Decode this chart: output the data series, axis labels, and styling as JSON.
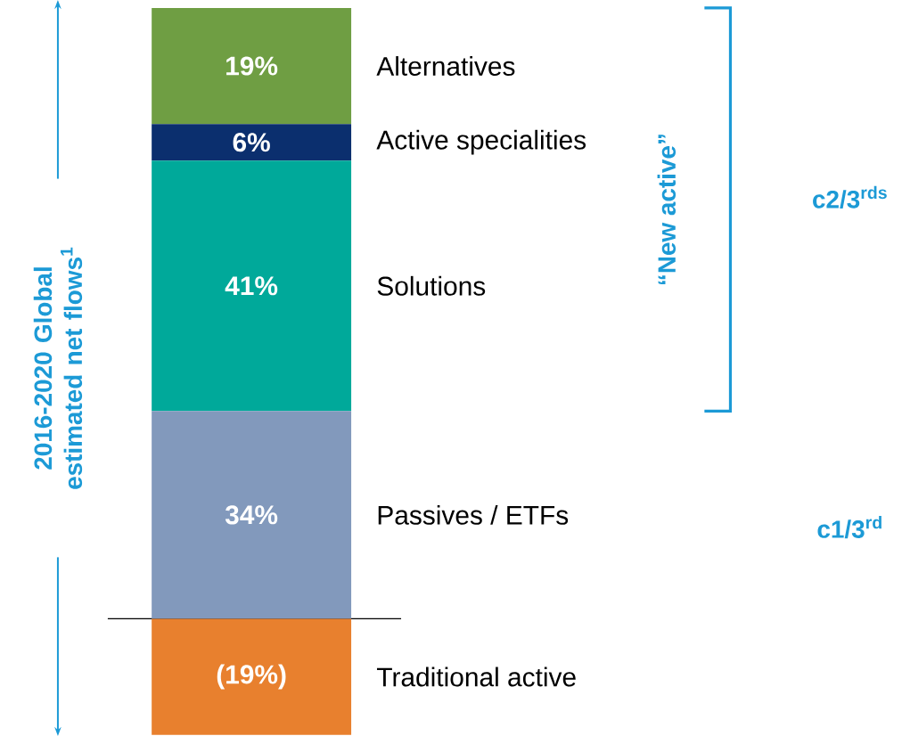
{
  "chart_data": {
    "type": "bar",
    "stacked": true,
    "categories": [
      null
    ],
    "ylabel": "2016-2020 Global estimated net flows$^{1}$",
    "series": [
      {
        "name": "Traditional active",
        "color": "#e8802e",
        "values": [
          -19
        ],
        "value_labels": [
          "(19%)"
        ]
      },
      {
        "name": "Passives / ETFs",
        "color": "#8299bc",
        "values": [
          34
        ],
        "value_labels": [
          "34%"
        ]
      },
      {
        "name": "Solutions",
        "color": "#00a99a",
        "values": [
          41
        ],
        "value_labels": [
          "41%"
        ]
      },
      {
        "name": "Active specialities",
        "color": "#0b2f6e",
        "values": [
          6
        ],
        "value_labels": [
          "6%"
        ]
      },
      {
        "name": "Alternatives",
        "color": "#6f9e43",
        "values": [
          19
        ],
        "value_labels": [
          "19%"
        ]
      }
    ],
    "annotations": [
      "“New active”",
      "c2/3$^{rds}$",
      "c1/3$^{rd}$"
    ],
    "ref_lines": [
      {
        "axis": "y",
        "value": 0,
        "color": "#000000"
      }
    ],
    "tick_labels": false,
    "legend": false
  }
}
